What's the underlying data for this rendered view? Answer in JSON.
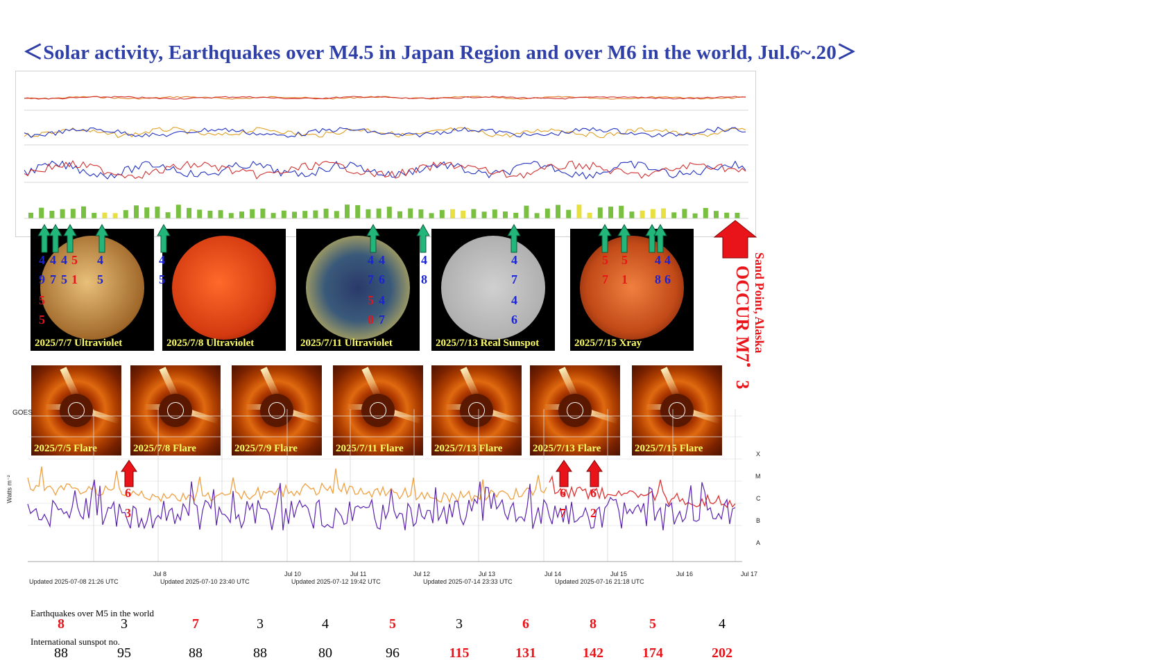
{
  "title": "＜Solar activity, Earthquakes over M4.5 in Japan Region and over M6 in the world, Jul.6~.20＞",
  "sun_images": [
    {
      "caption": "2025/7/7 Ultraviolet",
      "color": "#b07a3a"
    },
    {
      "caption": "2025/7/8 Ultraviolet",
      "color": "#d43a10"
    },
    {
      "caption": "2025/7/11 Ultraviolet",
      "color": "#5a7a8a"
    },
    {
      "caption": "2025/7/13 Real Sunspot",
      "color": "#b8b8b8"
    },
    {
      "caption": "2025/7/15 Xray",
      "color": "#c24a18"
    }
  ],
  "flare_images": [
    {
      "caption": "2025/7/5 Flare"
    },
    {
      "caption": "2025/7/8 Flare"
    },
    {
      "caption": "2025/7/9 Flare"
    },
    {
      "caption": "2025/7/11 Flare"
    },
    {
      "caption": "2025/7/13 Flare"
    },
    {
      "caption": "2025/7/13 Flare"
    },
    {
      "caption": "2025/7/15 Flare"
    }
  ],
  "quake_marks_upper": [
    {
      "d1": "4",
      "d2": "9",
      "color": "blue"
    },
    {
      "d1": "4",
      "d2": "7",
      "color": "blue"
    },
    {
      "d1": "4",
      "d2": "5",
      "color": "blue"
    },
    {
      "d1": "5",
      "d2": "1",
      "color": "red"
    },
    {
      "d1": "5",
      "d2": "5",
      "color": "red"
    },
    {
      "d1": "4",
      "d2": "5",
      "color": "blue"
    },
    {
      "d1": "4",
      "d2": "5",
      "color": "blue"
    },
    {
      "d1": "4",
      "d2": "7",
      "color": "blue"
    },
    {
      "d1": "4",
      "d2": "6",
      "color": "blue"
    },
    {
      "d1": "5",
      "d2": "0",
      "color": "red"
    },
    {
      "d1": "4",
      "d2": "7",
      "color": "blue"
    },
    {
      "d1": "4",
      "d2": "8",
      "color": "blue"
    },
    {
      "d1": "4",
      "d2": "7",
      "color": "blue"
    },
    {
      "d1": "4",
      "d2": "6",
      "color": "blue"
    },
    {
      "d1": "5",
      "d2": "7",
      "color": "red"
    },
    {
      "d1": "5",
      "d2": "1",
      "color": "red"
    },
    {
      "d1": "4",
      "d2": "8",
      "color": "blue"
    },
    {
      "d1": "4",
      "d2": "6",
      "color": "blue"
    }
  ],
  "quake_marks_lower": [
    {
      "d1": "6",
      "d2": "3"
    },
    {
      "d1": "6",
      "d2": "7"
    },
    {
      "d1": "6",
      "d2": "2"
    }
  ],
  "occur_text": "OCCUR M7．3",
  "occur_place": "Sand Point, Alaska",
  "goes_updates": [
    "Updated 2025-07-08 21:26 UTC",
    "Updated 2025-07-10 23:40 UTC",
    "Updated 2025-07-12 19:42 UTC",
    "Updated 2025-07-14 23:33 UTC",
    "Updated 2025-07-16 21:18 UTC"
  ],
  "goes_days": [
    "Jul 8",
    "Jul 10",
    "Jul 11",
    "Jul 12",
    "Jul 13",
    "Jul 14",
    "Jul 15",
    "Jul 16",
    "Jul 17"
  ],
  "xray_classes": [
    "X",
    "M",
    "C",
    "B",
    "A"
  ],
  "goes_ylabel": "Watts m⁻²",
  "goes_label": "GOES",
  "chart_data": {
    "type": "table",
    "row_labels": [
      "Earthquakes over M5 in the world",
      "International sunspot no."
    ],
    "earthquakes": [
      "8",
      "3",
      "7",
      "3",
      "4",
      "5",
      "3",
      "6",
      "8",
      "5",
      "4"
    ],
    "earthquake_colors": [
      "red",
      "black",
      "red",
      "black",
      "black",
      "red",
      "black",
      "red",
      "red",
      "red",
      "black"
    ],
    "sunspots": [
      "88",
      "95",
      "88",
      "88",
      "80",
      "96",
      "115",
      "131",
      "142",
      "174",
      "202"
    ],
    "sunspot_colors": [
      "black",
      "black",
      "black",
      "black",
      "black",
      "black",
      "red",
      "red",
      "red",
      "red",
      "red"
    ]
  },
  "colors": {
    "title": "#2f3fa8",
    "quake_blue": "#1a23d6",
    "quake_red": "#e8141a",
    "arrow_green": "#22b67a",
    "caption_yellow": "#ffff66"
  }
}
